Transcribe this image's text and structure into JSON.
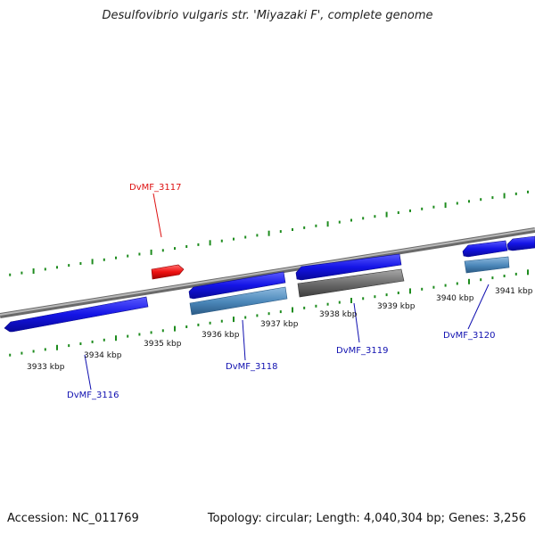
{
  "title": "Desulfovibrio vulgaris str. 'Miyazaki F', complete genome",
  "accession": "Accession: NC_011769",
  "summary": "Topology: circular; Length: 4,040,304 bp; Genes: 3,256",
  "colors": {
    "backbone": "#8c8c8c",
    "gene_forward": "#1414e6",
    "gene_selected": "#ee1111",
    "cds_feature": "#4a86b8",
    "pseudo_feature": "#6e6e6e",
    "tick": "#1e8c1e",
    "label_default": "#1010b0",
    "label_selected": "#dd1111"
  },
  "scale_labels": [
    "3933 kbp",
    "3934 kbp",
    "3935 kbp",
    "3936 kbp",
    "3937 kbp",
    "3938 kbp",
    "3939 kbp",
    "3940 kbp",
    "3941 kbp"
  ],
  "genes": [
    {
      "label": "DvMF_3116",
      "selected": false
    },
    {
      "label": "DvMF_3117",
      "selected": true
    },
    {
      "label": "DvMF_3118",
      "selected": false
    },
    {
      "label": "DvMF_3119",
      "selected": false
    },
    {
      "label": "DvMF_3120",
      "selected": false
    }
  ]
}
